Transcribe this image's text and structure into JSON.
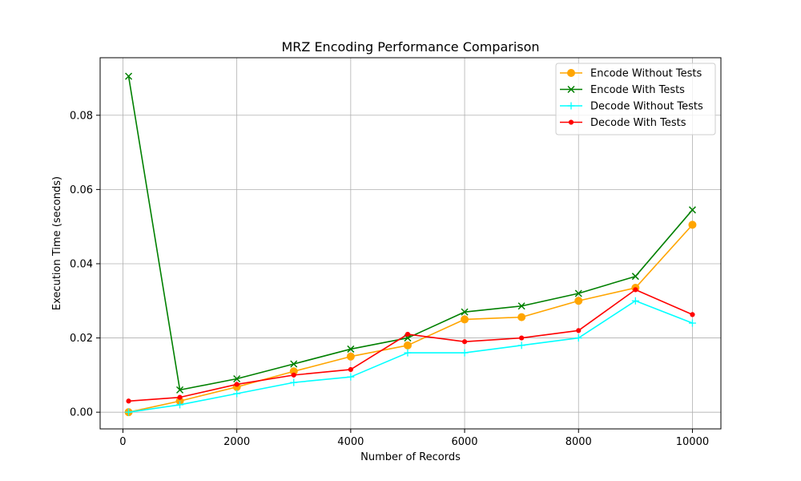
{
  "chart_data": {
    "type": "line",
    "title": "MRZ Encoding Performance Comparison",
    "xlabel": "Number of Records",
    "ylabel": "Execution Time (seconds)",
    "xlim": [
      -400,
      10500
    ],
    "ylim": [
      -0.0045,
      0.0955
    ],
    "xticks": [
      0,
      2000,
      4000,
      6000,
      8000,
      10000
    ],
    "yticks": [
      0.0,
      0.02,
      0.04,
      0.06,
      0.08
    ],
    "ytick_labels": [
      "0.00",
      "0.02",
      "0.04",
      "0.06",
      "0.08"
    ],
    "grid": true,
    "legend_position": "top-right",
    "x": [
      100,
      1000,
      2000,
      3000,
      4000,
      5000,
      6000,
      7000,
      8000,
      9000,
      10000
    ],
    "series": [
      {
        "name": "Encode Without Tests",
        "color": "#ffa500",
        "marker": "circle",
        "values": [
          0.0,
          0.003,
          0.0068,
          0.011,
          0.015,
          0.018,
          0.025,
          0.0256,
          0.03,
          0.0335,
          0.0505
        ]
      },
      {
        "name": "Encode With Tests",
        "color": "#008000",
        "marker": "x",
        "values": [
          0.0905,
          0.006,
          0.009,
          0.013,
          0.017,
          0.02,
          0.027,
          0.0286,
          0.032,
          0.0366,
          0.0545
        ]
      },
      {
        "name": "Decode Without Tests",
        "color": "#00ffff",
        "marker": "plus",
        "values": [
          0.0,
          0.002,
          0.005,
          0.008,
          0.0095,
          0.016,
          0.016,
          0.018,
          0.02,
          0.03,
          0.024
        ]
      },
      {
        "name": "Decode With Tests",
        "color": "#ff0000",
        "marker": "dot",
        "values": [
          0.003,
          0.004,
          0.0075,
          0.01,
          0.0115,
          0.021,
          0.019,
          0.02,
          0.022,
          0.033,
          0.0263
        ]
      }
    ]
  }
}
